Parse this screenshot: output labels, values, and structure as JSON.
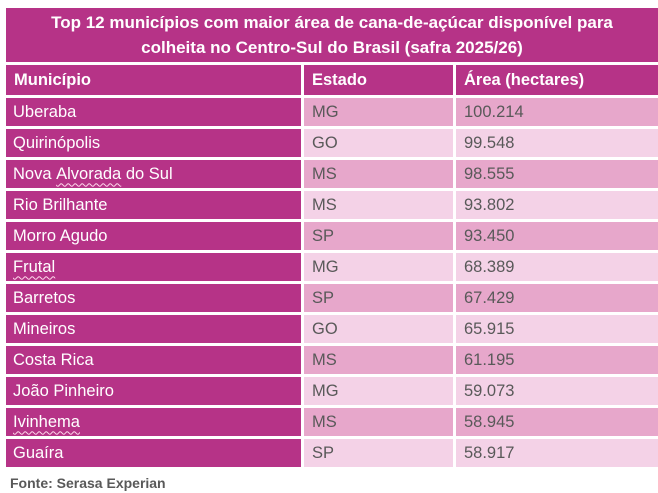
{
  "title_lines": [
    "Top 12 municípios com maior área de cana-de-açúcar disponível para",
    "colheita no Centro-Sul do Brasil (safra 2025/26)"
  ],
  "chart_data": {
    "type": "table",
    "title": "Top 12 municípios com maior área de cana-de-açúcar disponível para colheita no Centro-Sul do Brasil (safra 2025/26)",
    "columns": [
      "Município",
      "Estado",
      "Área (hectares)"
    ],
    "rows": [
      {
        "municipio": "Uberaba",
        "estado": "MG",
        "area": "100.214"
      },
      {
        "municipio": "Quirinópolis",
        "estado": "GO",
        "area": "99.548"
      },
      {
        "municipio": "Nova Alvorada do Sul",
        "estado": "MS",
        "area": "98.555",
        "squiggle": "Alvorada"
      },
      {
        "municipio": "Rio Brilhante",
        "estado": "MS",
        "area": "93.802"
      },
      {
        "municipio": "Morro Agudo",
        "estado": "SP",
        "area": "93.450"
      },
      {
        "municipio": "Frutal",
        "estado": "MG",
        "area": "68.389",
        "squiggle": "Frutal"
      },
      {
        "municipio": "Barretos",
        "estado": "SP",
        "area": "67.429"
      },
      {
        "municipio": "Mineiros",
        "estado": "GO",
        "area": "65.915"
      },
      {
        "municipio": "Costa Rica",
        "estado": "MS",
        "area": "61.195"
      },
      {
        "municipio": "João Pinheiro",
        "estado": "MG",
        "area": "59.073"
      },
      {
        "municipio": "Ivinhema",
        "estado": "MS",
        "area": "58.945",
        "squiggle": "Ivinhema"
      },
      {
        "municipio": "Guaíra",
        "estado": "SP",
        "area": "58.917"
      }
    ]
  },
  "footer": "Fonte: Serasa Experian",
  "colors": {
    "magenta": "#b63387",
    "row_odd_bg": "#e7a7cb",
    "row_even_bg": "#f4d2e7",
    "cell_text": "#595959"
  }
}
